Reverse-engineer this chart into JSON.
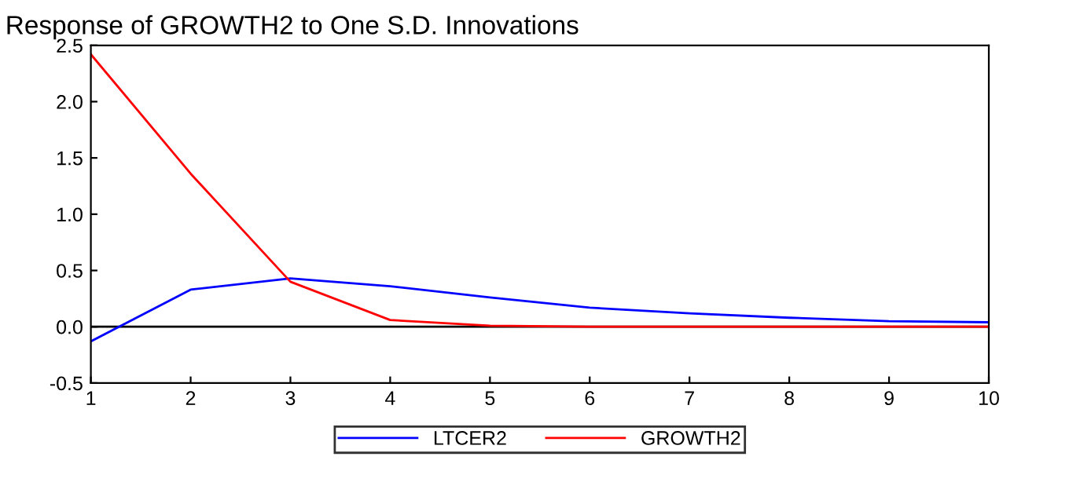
{
  "chart_data": {
    "type": "line",
    "title": "Response of GROWTH2 to One S.D. Innovations",
    "x": [
      1,
      2,
      3,
      4,
      5,
      6,
      7,
      8,
      9,
      10
    ],
    "series": [
      {
        "name": "LTCER2",
        "color": "#0000ff",
        "values": [
          -0.13,
          0.33,
          0.43,
          0.36,
          0.26,
          0.17,
          0.12,
          0.08,
          0.05,
          0.04
        ]
      },
      {
        "name": "GROWTH2",
        "color": "#ff0000",
        "values": [
          2.42,
          1.36,
          0.4,
          0.06,
          0.01,
          0.0,
          0.0,
          0.0,
          0.0,
          0.0
        ]
      }
    ],
    "xlim": [
      1,
      10
    ],
    "xticks": [
      1,
      2,
      3,
      4,
      5,
      6,
      7,
      8,
      9,
      10
    ],
    "ylim": [
      -0.5,
      2.5
    ],
    "yticks": [
      {
        "value": -0.5,
        "label": "-0.5"
      },
      {
        "value": 0,
        "label": "0.0"
      },
      0.5,
      {
        "value": 1,
        "label": "1.0"
      },
      1.5,
      {
        "value": 2,
        "label": "2.0"
      },
      2.5
    ],
    "ref_lines": [
      {
        "axis": "y",
        "value": 0,
        "color": "#000000"
      }
    ],
    "grid": false,
    "legend": "bottom",
    "marker": "none",
    "line_style": "solid"
  }
}
